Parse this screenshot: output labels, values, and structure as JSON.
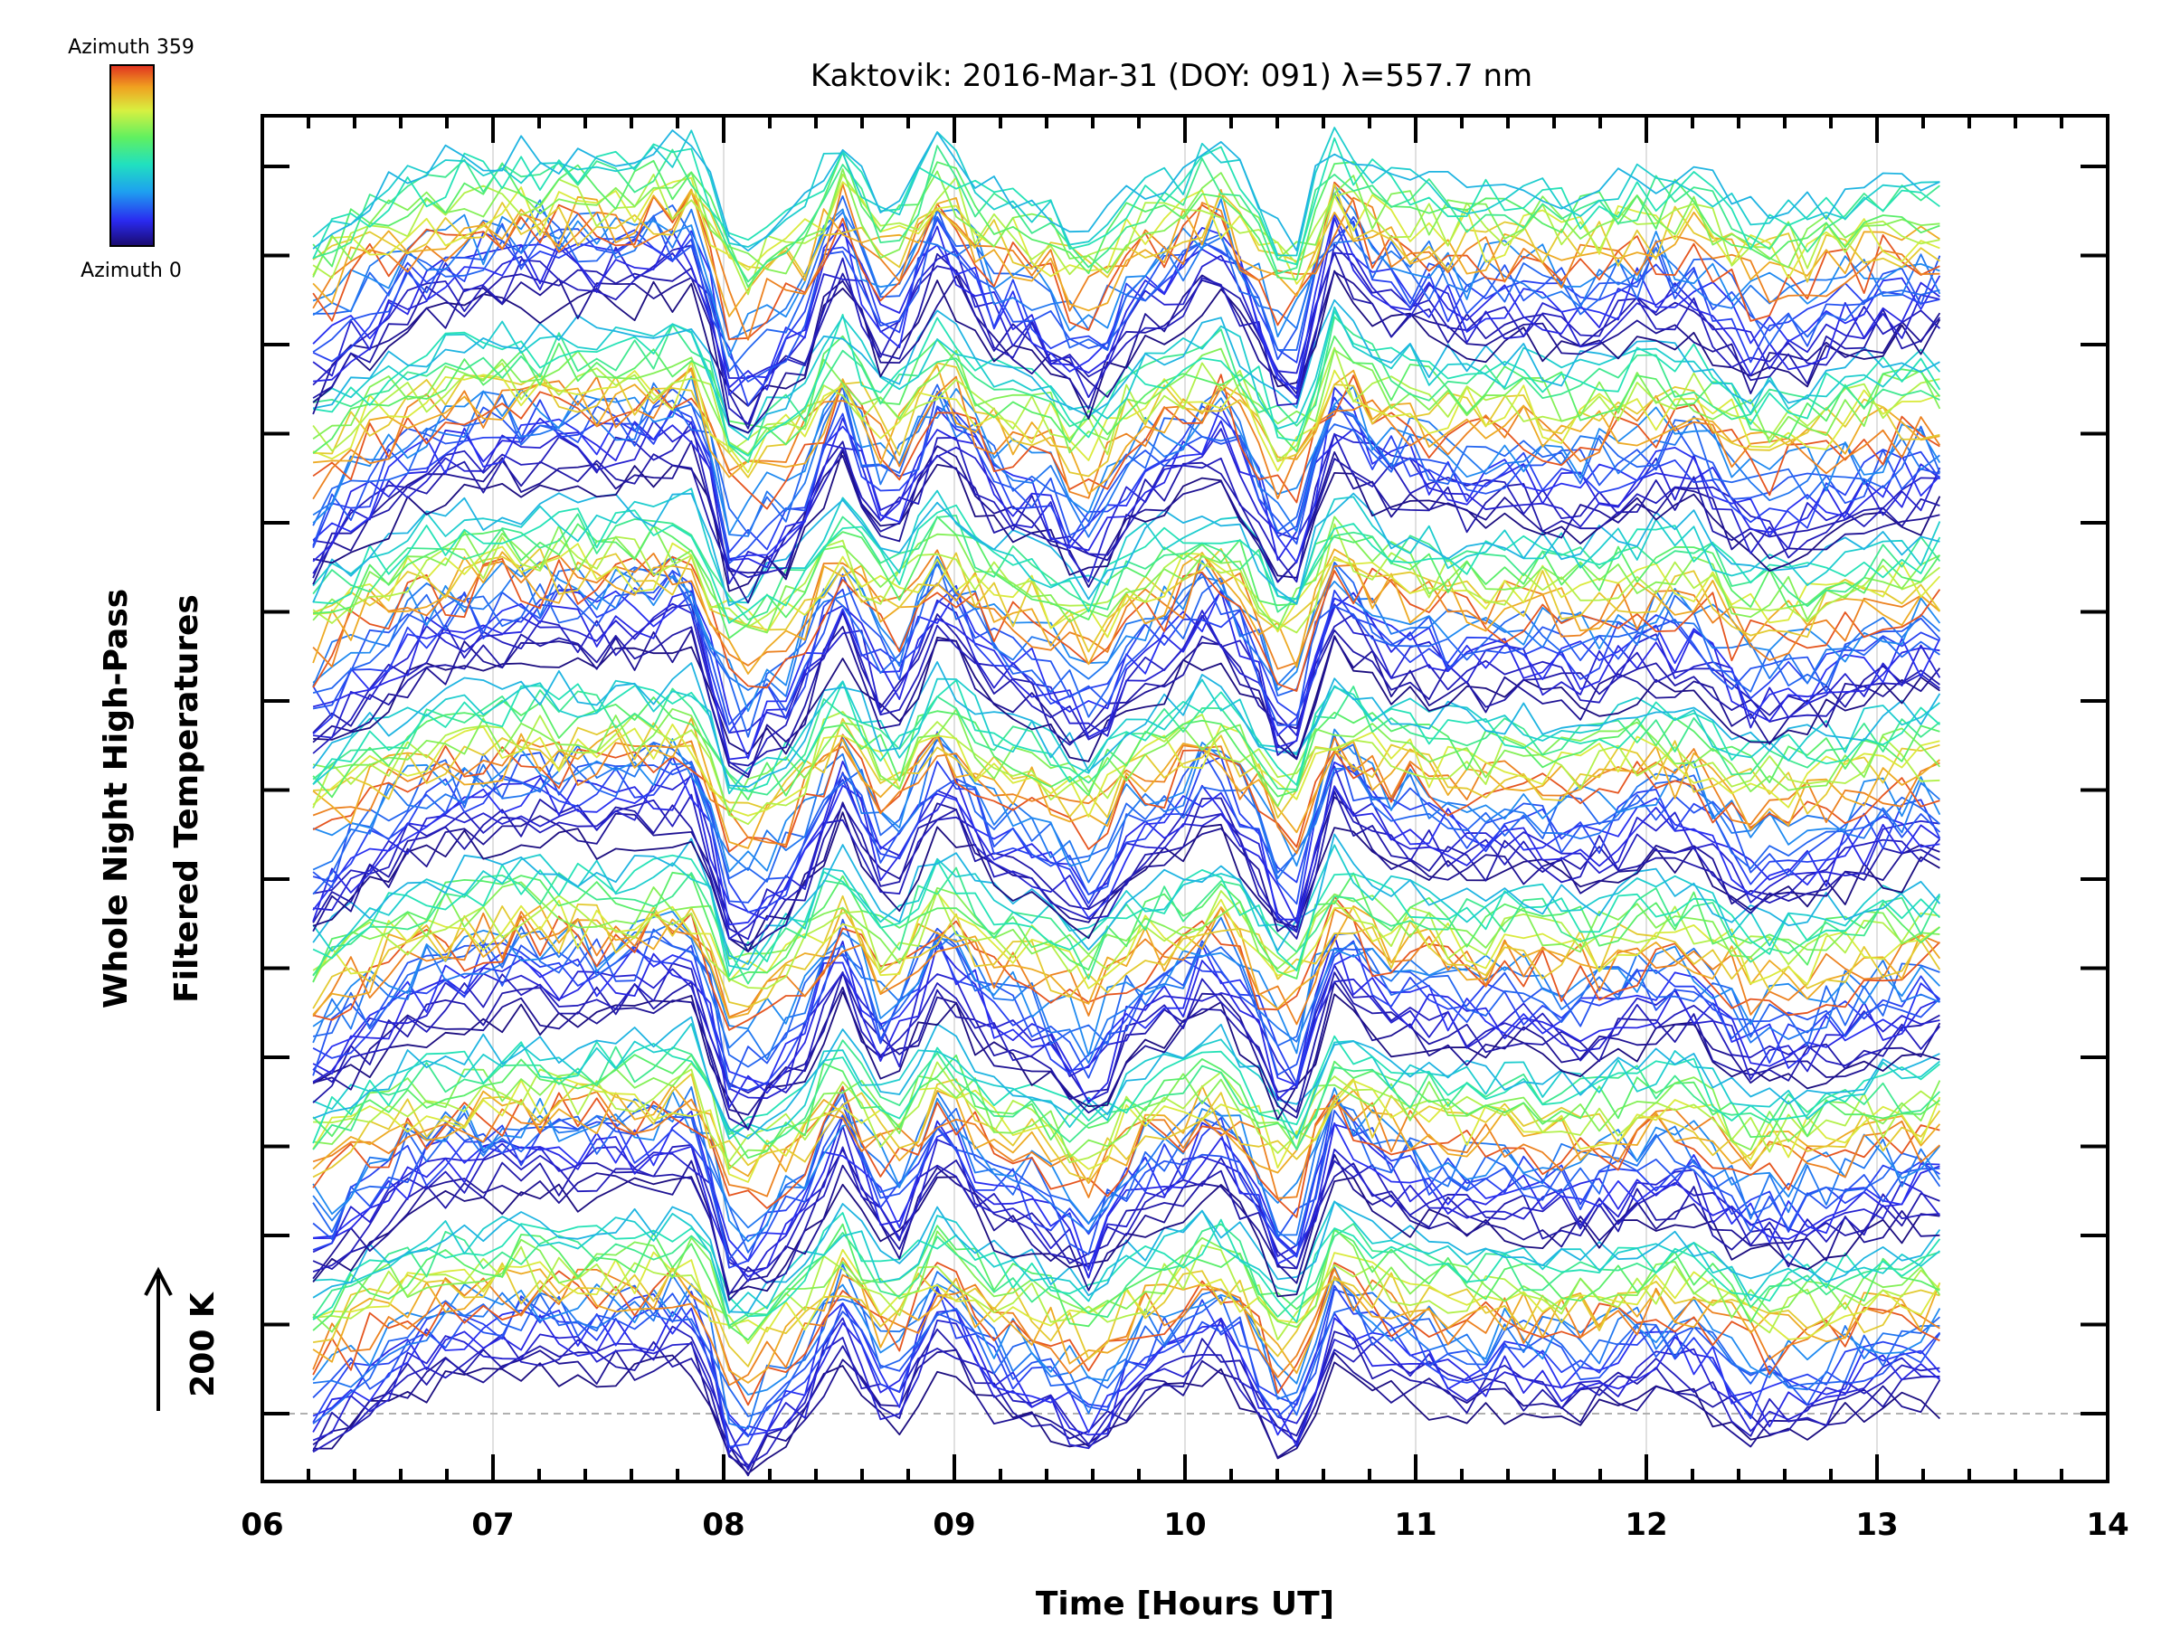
{
  "chart_data": {
    "type": "line",
    "title": "Kaktovik: 2016-Mar-31 (DOY: 091) λ=557.7 nm",
    "xlabel": "Time [Hours UT]",
    "ylabel_lines": [
      "Whole Night High-Pass",
      "Filtered Temperatures"
    ],
    "scale_bar_label": "200 K",
    "colorbar": {
      "top_label": "Azimuth  359",
      "bottom_label": "Azimuth  0",
      "colors": [
        "#1a0a6e",
        "#2a2af0",
        "#1ea0f0",
        "#20e0c0",
        "#60f060",
        "#d8f040",
        "#f0a020",
        "#e03020"
      ]
    },
    "xlim": [
      6,
      14
    ],
    "x_ticks": [
      "06",
      "07",
      "08",
      "09",
      "10",
      "11",
      "12",
      "13",
      "14"
    ],
    "data_range": [
      6.22,
      13.32
    ],
    "key_times": [
      6.22,
      6.4,
      6.6,
      6.8,
      7.0,
      7.2,
      7.4,
      7.65,
      7.88,
      8.05,
      8.2,
      8.32,
      8.5,
      8.72,
      8.95,
      9.15,
      9.35,
      9.6,
      9.78,
      10.0,
      10.12,
      10.3,
      10.45,
      10.65,
      10.85,
      11.0,
      11.2,
      11.45,
      11.7,
      11.95,
      12.2,
      12.45,
      12.7,
      12.95,
      13.15,
      13.32
    ],
    "base_profile": [
      -0.8,
      -0.3,
      0.2,
      0.5,
      0.6,
      0.7,
      0.6,
      0.7,
      0.9,
      -1.3,
      -0.7,
      -0.5,
      1.0,
      -0.5,
      1.0,
      0.0,
      -0.2,
      -0.9,
      0.1,
      0.4,
      0.9,
      0.0,
      -1.2,
      1.0,
      0.3,
      0.2,
      0.0,
      0.1,
      -0.1,
      0.2,
      0.3,
      -0.5,
      -0.4,
      0.0,
      0.1,
      0.2
    ],
    "series_groups": 7,
    "curves_per_group": 24,
    "azimuth_range": [
      0,
      359
    ],
    "grid": true
  }
}
